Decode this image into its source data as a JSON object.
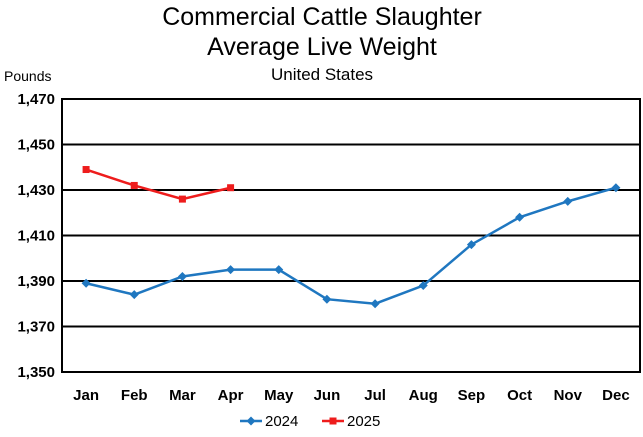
{
  "chart_data": {
    "type": "line",
    "title_lines": [
      "Commercial Cattle Slaughter",
      "Average Live Weight"
    ],
    "subtitle": "United States",
    "ylabel": "Pounds",
    "xlabel": "",
    "categories": [
      "Jan",
      "Feb",
      "Mar",
      "Apr",
      "May",
      "Jun",
      "Jul",
      "Aug",
      "Sep",
      "Oct",
      "Nov",
      "Dec"
    ],
    "ylim": [
      1350,
      1470
    ],
    "yticks": [
      1350,
      1370,
      1390,
      1410,
      1430,
      1450,
      1470
    ],
    "ytick_labels": [
      "1,350",
      "1,370",
      "1,390",
      "1,410",
      "1,430",
      "1,450",
      "1,470"
    ],
    "grid": true,
    "legend": "bottom",
    "series": [
      {
        "name": "2024",
        "color": "#1F77C0",
        "marker": "diamond",
        "values": [
          1389,
          1384,
          1392,
          1395,
          1395,
          1382,
          1380,
          1388,
          1406,
          1418,
          1425,
          1431
        ]
      },
      {
        "name": "2025",
        "color": "#EE1C1C",
        "marker": "square",
        "values": [
          1439,
          1432,
          1426,
          1431,
          null,
          null,
          null,
          null,
          null,
          null,
          null,
          null
        ]
      }
    ]
  }
}
